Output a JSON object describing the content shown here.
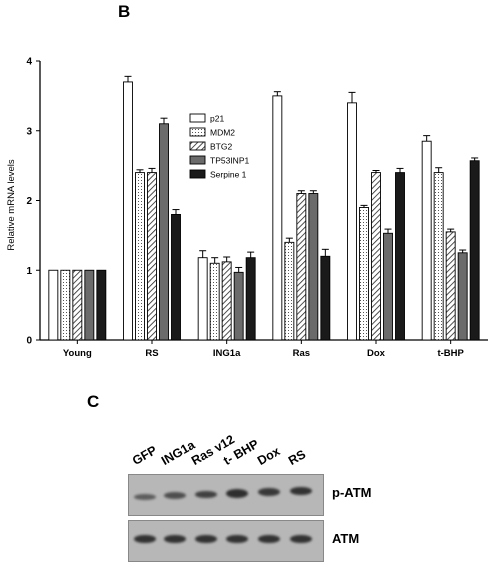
{
  "panel_b_label": "B",
  "panel_c_label": "C",
  "chart_data": {
    "type": "bar",
    "title": "",
    "xlabel": "",
    "ylabel": "Relative mRNA levels",
    "ylim": [
      0,
      4
    ],
    "yticks": [
      "0",
      "1",
      "2",
      "3",
      "4"
    ],
    "grid": false,
    "legend_position": "top-center",
    "categories": [
      "Young",
      "RS",
      "ING1a",
      "Ras",
      "Dox",
      "t-BHP"
    ],
    "series": [
      {
        "name": "p21",
        "pattern": "open",
        "values": [
          1.0,
          3.7,
          1.18,
          3.5,
          3.4,
          2.85
        ],
        "errors": [
          0,
          0.08,
          0.1,
          0.06,
          0.15,
          0.08
        ]
      },
      {
        "name": "MDM2",
        "pattern": "dotted",
        "values": [
          1.0,
          2.4,
          1.1,
          1.4,
          1.9,
          2.4
        ],
        "errors": [
          0,
          0.04,
          0.08,
          0.06,
          0.03,
          0.07
        ]
      },
      {
        "name": "BTG2",
        "pattern": "hatched",
        "values": [
          1.0,
          2.4,
          1.12,
          2.1,
          2.4,
          1.55
        ],
        "errors": [
          0,
          0.06,
          0.07,
          0.04,
          0.03,
          0.04
        ]
      },
      {
        "name": "TP53INP1",
        "pattern": "grey",
        "values": [
          1.0,
          3.1,
          0.97,
          2.1,
          1.53,
          1.25
        ],
        "errors": [
          0,
          0.08,
          0.07,
          0.04,
          0.06,
          0.04
        ]
      },
      {
        "name": "Serpine 1",
        "pattern": "black",
        "values": [
          1.0,
          1.8,
          1.18,
          1.2,
          2.4,
          2.57
        ],
        "errors": [
          0,
          0.07,
          0.08,
          0.1,
          0.06,
          0.04
        ]
      }
    ]
  },
  "blot": {
    "lanes": [
      "GFP",
      "ING1a",
      "Ras v12",
      "t- BHP",
      "Dox",
      "RS"
    ],
    "rows": [
      {
        "label": "p-ATM",
        "intensity": [
          0.45,
          0.6,
          0.75,
          0.95,
          0.85,
          0.9
        ]
      },
      {
        "label": "ATM",
        "intensity": [
          0.9,
          0.9,
          0.9,
          0.9,
          0.9,
          0.9
        ]
      }
    ]
  }
}
